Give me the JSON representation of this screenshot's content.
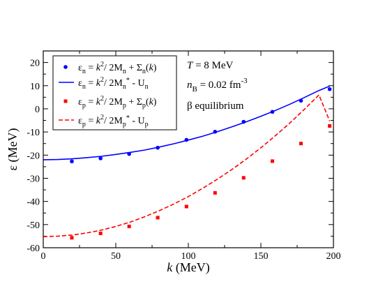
{
  "chart_data": {
    "type": "line",
    "xlabel": {
      "var": "k",
      "unit": "(MeV)"
    },
    "ylabel": {
      "var": "ε",
      "unit": "(MeV)"
    },
    "xlim": [
      0,
      200
    ],
    "ylim": [
      -60,
      25
    ],
    "xticks": [
      0,
      50,
      100,
      150,
      200
    ],
    "yticks": [
      -60,
      -50,
      -40,
      -30,
      -20,
      -10,
      0,
      10,
      20
    ],
    "grid": false,
    "legend_position": "top-left",
    "annotations": [
      {
        "prefix": "T",
        "text": " = 8 MeV"
      },
      {
        "prefix": "n",
        "sub": "B",
        "text": " = 0.02 fm",
        "sup": "-3"
      },
      {
        "text": "β equilibrium"
      }
    ],
    "series": [
      {
        "name": "ε_n = k²/ 2M_n + Σ_n(k)",
        "style": "markers",
        "marker": "circle",
        "color": "#0000ff",
        "x": [
          19.7,
          39.5,
          59.2,
          78.9,
          98.7,
          118.4,
          138.1,
          157.9,
          177.6,
          197.4
        ],
        "y": [
          -22.7,
          -21.4,
          -19.5,
          -16.8,
          -13.4,
          -9.9,
          -5.6,
          -1.3,
          3.5,
          8.5
        ]
      },
      {
        "name": "ε_n = k²/ 2M_n* - U_n",
        "style": "solid",
        "color": "#0000ff",
        "x": [
          0,
          10,
          20,
          30,
          40,
          50,
          60,
          70,
          80,
          90,
          100,
          110,
          120,
          130,
          140,
          150,
          160,
          170,
          180,
          190,
          197.4
        ],
        "y": [
          -22.0,
          -21.9,
          -21.6,
          -21.1,
          -20.5,
          -19.7,
          -18.8,
          -17.8,
          -16.5,
          -15.1,
          -13.5,
          -11.8,
          -9.9,
          -7.8,
          -5.6,
          -3.2,
          -0.7,
          2.0,
          4.9,
          7.9,
          9.8
        ]
      },
      {
        "name": "ε_p = k²/ 2M_p + Σ_p(k)",
        "style": "markers",
        "marker": "square",
        "color": "#ff0000",
        "x": [
          19.7,
          39.5,
          59.2,
          78.9,
          98.7,
          118.4,
          138.1,
          157.9,
          177.6,
          197.4
        ],
        "y": [
          -55.7,
          -53.8,
          -50.8,
          -47.0,
          -42.2,
          -36.3,
          -29.8,
          -22.6,
          -15.0,
          -7.4
        ]
      },
      {
        "name": "ε_p = k²/ 2M_p* - U_p",
        "style": "dashed",
        "color": "#ff0000",
        "x": [
          0,
          10,
          20,
          30,
          40,
          50,
          60,
          70,
          80,
          90,
          100,
          110,
          120,
          130,
          140,
          150,
          160,
          170,
          180,
          190,
          197.4
        ],
        "y": [
          -55.2,
          -55.0,
          -54.5,
          -53.6,
          -52.4,
          -50.8,
          -48.9,
          -46.6,
          -44.0,
          -41.1,
          -37.9,
          -34.3,
          -30.4,
          -26.2,
          -21.7,
          -16.8,
          -11.6,
          -6.1,
          -0.2,
          6.0,
          -5.3
        ]
      }
    ]
  }
}
